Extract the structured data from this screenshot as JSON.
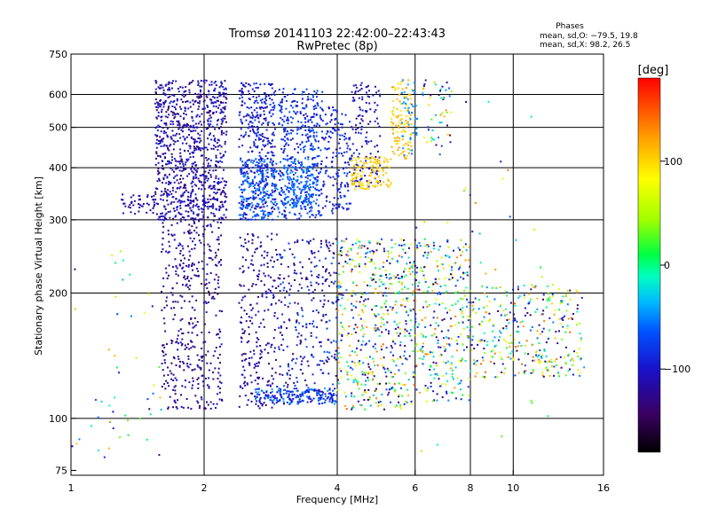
{
  "chart_data": {
    "type": "scatter",
    "title": "Tromsø 20141103 22:42:00–22:43:43",
    "subtitle": "RwPretec (8p)",
    "xlabel": "Frequency [MHz]",
    "ylabel": "Stationary phase Virtual Height [km]",
    "x_scale": "log",
    "y_scale": "log",
    "xlim": [
      1,
      16
    ],
    "ylim": [
      73,
      750
    ],
    "x_ticks": [
      "1",
      "2",
      "4",
      "6",
      "8",
      "10",
      "16"
    ],
    "x_tick_values": [
      1,
      2,
      4,
      6,
      8,
      10,
      16
    ],
    "y_ticks": [
      "75",
      "100",
      "200",
      "300",
      "400",
      "500",
      "600",
      "750"
    ],
    "y_tick_values": [
      75,
      100,
      200,
      300,
      400,
      500,
      600,
      750
    ],
    "grid": true,
    "x_grid_values": [
      2,
      4,
      6,
      8,
      10
    ],
    "y_grid_values": [
      100,
      200,
      300,
      400,
      500,
      600
    ],
    "phases_legend": {
      "title": "Phases",
      "line_o": "mean, sd,O: −79.5, 19.8",
      "line_x": "mean, sd,X:  98.2, 26.5"
    },
    "colorbar": {
      "label": "[deg]",
      "range": [
        -180,
        180
      ],
      "ticks": [
        "100",
        "0",
        "−100"
      ],
      "tick_values": [
        100,
        0,
        -100
      ]
    },
    "point_groups": [
      {
        "x": [
          1.55,
          2.25
        ],
        "y": [
          300,
          650
        ],
        "phase_range": [
          -140,
          -85
        ],
        "density": 900
      },
      {
        "x": [
          2.4,
          2.9
        ],
        "y": [
          300,
          640
        ],
        "phase_range": [
          -120,
          -70
        ],
        "density": 420
      },
      {
        "x": [
          2.4,
          2.95
        ],
        "y": [
          300,
          420
        ],
        "phase_range": [
          -75,
          -40
        ],
        "density": 160
      },
      {
        "x": [
          2.95,
          3.7
        ],
        "y": [
          300,
          620
        ],
        "phase_range": [
          -105,
          -60
        ],
        "density": 400
      },
      {
        "x": [
          3.0,
          3.6
        ],
        "y": [
          320,
          420
        ],
        "phase_range": [
          -70,
          -45
        ],
        "density": 150
      },
      {
        "x": [
          3.7,
          4.3
        ],
        "y": [
          310,
          560
        ],
        "phase_range": [
          -110,
          -70
        ],
        "density": 160
      },
      {
        "x": [
          4.3,
          5.0
        ],
        "y": [
          360,
          640
        ],
        "phase_range": [
          -130,
          -80
        ],
        "density": 130
      },
      {
        "x": [
          4.3,
          5.3
        ],
        "y": [
          355,
          425
        ],
        "phase_range": [
          90,
          115
        ],
        "density": 130
      },
      {
        "x": [
          5.3,
          5.9
        ],
        "y": [
          420,
          650
        ],
        "phase_range": [
          90,
          130
        ],
        "density": 110
      },
      {
        "x": [
          5.6,
          6.1
        ],
        "y": [
          420,
          650
        ],
        "phase_range": [
          -60,
          -35
        ],
        "density": 40
      },
      {
        "x": [
          6.2,
          7.3
        ],
        "y": [
          450,
          650
        ],
        "phase_range": [
          -140,
          130
        ],
        "density": 50
      },
      {
        "x": [
          1.3,
          1.55
        ],
        "y": [
          310,
          345
        ],
        "phase_range": [
          -130,
          -95
        ],
        "density": 45
      },
      {
        "x": [
          1.6,
          2.2
        ],
        "y": [
          105,
          300
        ],
        "phase_range": [
          -145,
          -95
        ],
        "density": 420
      },
      {
        "x": [
          2.4,
          2.95
        ],
        "y": [
          105,
          280
        ],
        "phase_range": [
          -140,
          -90
        ],
        "density": 240
      },
      {
        "x": [
          2.6,
          4.0
        ],
        "y": [
          108,
          118
        ],
        "phase_range": [
          -110,
          -40
        ],
        "density": 200
      },
      {
        "x": [
          2.95,
          4.0
        ],
        "y": [
          115,
          270
        ],
        "phase_range": [
          -150,
          -60
        ],
        "density": 280
      },
      {
        "x": [
          4.0,
          6.0
        ],
        "y": [
          105,
          270
        ],
        "phase_range": [
          -160,
          150
        ],
        "density": 520
      },
      {
        "x": [
          6.0,
          8.0
        ],
        "y": [
          110,
          270
        ],
        "phase_range": [
          -150,
          150
        ],
        "density": 300
      },
      {
        "x": [
          8.0,
          14.5
        ],
        "y": [
          125,
          210
        ],
        "phase_range": [
          -150,
          150
        ],
        "density": 320
      },
      {
        "x": [
          1.0,
          1.6
        ],
        "y": [
          75,
          260
        ],
        "phase_range": [
          -140,
          120
        ],
        "density": 50
      },
      {
        "x": [
          6.0,
          12.0
        ],
        "y": [
          80,
          640
        ],
        "phase_range": [
          -140,
          140
        ],
        "density": 50
      }
    ]
  }
}
